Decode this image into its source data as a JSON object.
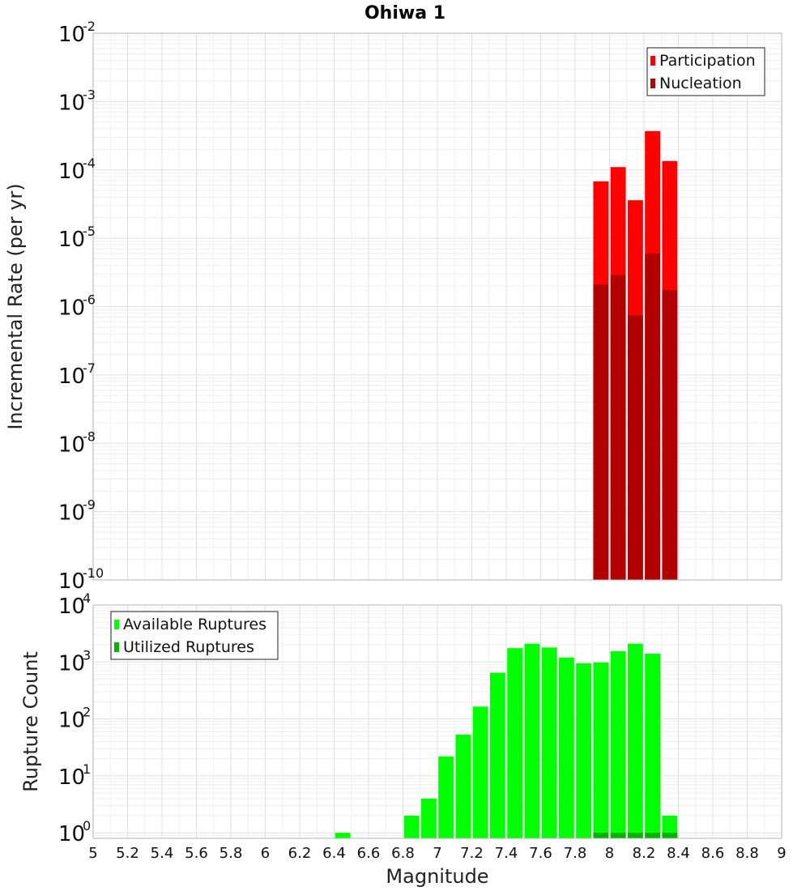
{
  "chart_data": [
    {
      "type": "bar",
      "title": "Ohiwa 1",
      "ylabel": "Incremental Rate (per yr)",
      "xlabel": "",
      "log_scale": true,
      "ylim": [
        1e-10,
        0.01
      ],
      "xlim": [
        5,
        9
      ],
      "grid": true,
      "legend_position": "top-right",
      "y_ticks": [
        {
          "base": "10",
          "exp": "-2",
          "value": 0.01
        },
        {
          "base": "10",
          "exp": "-3",
          "value": 0.001
        },
        {
          "base": "10",
          "exp": "-4",
          "value": 0.0001
        },
        {
          "base": "10",
          "exp": "-5",
          "value": 1e-05
        },
        {
          "base": "10",
          "exp": "-6",
          "value": 1e-06
        },
        {
          "base": "10",
          "exp": "-7",
          "value": 1e-07
        },
        {
          "base": "10",
          "exp": "-8",
          "value": 1e-08
        },
        {
          "base": "10",
          "exp": "-9",
          "value": 1e-09
        },
        {
          "base": "10",
          "exp": "-10",
          "value": 1e-10
        }
      ],
      "x": [
        7.95,
        8.05,
        8.15,
        8.25,
        8.35
      ],
      "series": [
        {
          "name": "Participation",
          "color": "#ff0000",
          "values": [
            6.8e-05,
            0.00011,
            3.6e-05,
            0.00037,
            0.000135
          ]
        },
        {
          "name": "Nucleation",
          "color": "#b20000",
          "values": [
            2.1e-06,
            2.9e-06,
            7.5e-07,
            6e-06,
            1.75e-06
          ]
        }
      ]
    },
    {
      "type": "bar",
      "title": "",
      "ylabel": "Rupture Count",
      "xlabel": "Magnitude",
      "log_scale": true,
      "ylim": [
        0.8,
        10000
      ],
      "xlim": [
        5,
        9
      ],
      "grid": true,
      "legend_position": "top-left",
      "y_ticks": [
        {
          "base": "10",
          "exp": "4",
          "value": 10000
        },
        {
          "base": "10",
          "exp": "3",
          "value": 1000
        },
        {
          "base": "10",
          "exp": "2",
          "value": 100
        },
        {
          "base": "10",
          "exp": "1",
          "value": 10
        },
        {
          "base": "10",
          "exp": "0",
          "value": 1
        }
      ],
      "x_ticks": [
        "5",
        "5.2",
        "5.4",
        "5.6",
        "5.8",
        "6",
        "6.2",
        "6.4",
        "6.6",
        "6.8",
        "7",
        "7.2",
        "7.4",
        "7.6",
        "7.8",
        "8",
        "8.2",
        "8.4",
        "8.6",
        "8.8",
        "9"
      ],
      "series": [
        {
          "name": "Available Ruptures",
          "color": "#00ff00",
          "x": [
            6.45,
            6.85,
            6.95,
            7.05,
            7.15,
            7.25,
            7.35,
            7.45,
            7.55,
            7.65,
            7.75,
            7.85,
            7.95,
            8.05,
            8.15,
            8.25,
            8.35
          ],
          "values": [
            1,
            2,
            4,
            22,
            53,
            165,
            650,
            1750,
            2100,
            1800,
            1200,
            950,
            980,
            1550,
            2100,
            1400,
            2
          ]
        },
        {
          "name": "Utilized Ruptures",
          "color": "#00b200",
          "x": [
            7.95,
            8.05,
            8.15,
            8.25,
            8.35
          ],
          "values": [
            1,
            1,
            1,
            1,
            1
          ]
        }
      ]
    }
  ]
}
